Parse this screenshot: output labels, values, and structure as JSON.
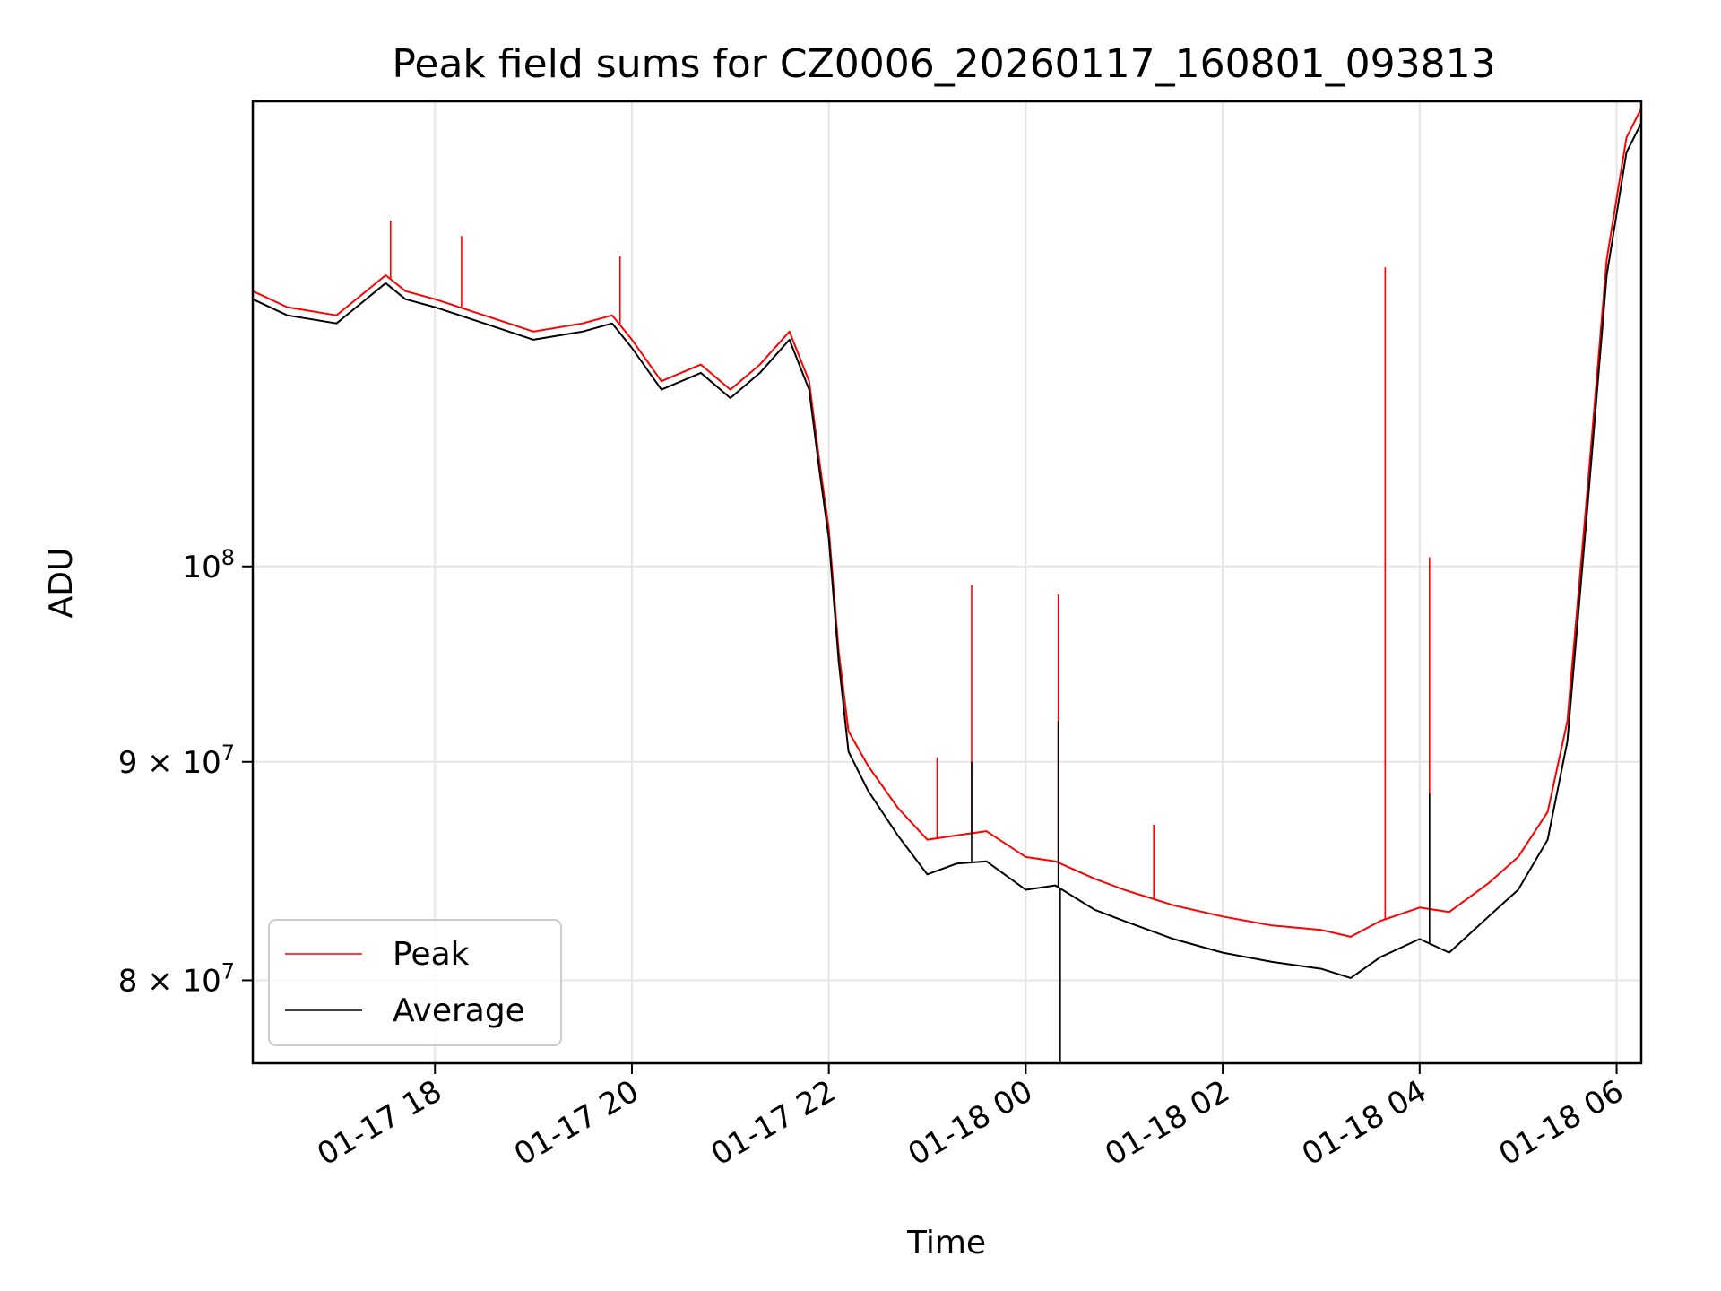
{
  "chart_data": {
    "type": "line",
    "title": "Peak field sums for CZ0006_20260117_160801_093813",
    "xlabel": "Time",
    "ylabel": "ADU",
    "yscale": "log",
    "grid": true,
    "legend_position": "lower-left",
    "xlim_hours": [
      16.15,
      30.25
    ],
    "ylim": [
      76500000,
      128500000
    ],
    "x_ticks": [
      {
        "hour": 18,
        "label": "01-17 18"
      },
      {
        "hour": 20,
        "label": "01-17 20"
      },
      {
        "hour": 22,
        "label": "01-17 22"
      },
      {
        "hour": 24,
        "label": "01-18 00"
      },
      {
        "hour": 26,
        "label": "01-18 02"
      },
      {
        "hour": 28,
        "label": "01-18 04"
      },
      {
        "hour": 30,
        "label": "01-18 06"
      }
    ],
    "y_ticks": [
      {
        "value": 80000000,
        "base": "8 × 10",
        "exp": "7"
      },
      {
        "value": 90000000,
        "base": "9 × 10",
        "exp": "7"
      },
      {
        "value": 100000000,
        "base": "10",
        "exp": "8"
      }
    ],
    "series": [
      {
        "name": "Peak",
        "color": "#ff0000",
        "x_hours": [
          16.15,
          16.5,
          17.0,
          17.5,
          17.7,
          18.0,
          18.5,
          19.0,
          19.5,
          19.8,
          20.0,
          20.3,
          20.7,
          21.0,
          21.3,
          21.6,
          21.8,
          21.9,
          22.0,
          22.1,
          22.2,
          22.4,
          22.7,
          23.0,
          23.3,
          23.6,
          24.0,
          24.3,
          24.7,
          25.0,
          25.5,
          26.0,
          26.5,
          27.0,
          27.3,
          27.6,
          28.0,
          28.3,
          28.7,
          29.0,
          29.3,
          29.5,
          29.7,
          29.9,
          30.1,
          30.25
        ],
        "values": [
          116000000,
          115000000,
          114500000,
          117000000,
          116000000,
          115500000,
          114500000,
          113500000,
          114000000,
          114500000,
          113000000,
          110500000,
          111500000,
          110000000,
          111500000,
          113500000,
          110500000,
          106000000,
          102000000,
          95500000,
          91500000,
          89800000,
          87800000,
          86300000,
          86500000,
          86700000,
          85500000,
          85300000,
          84500000,
          84000000,
          83300000,
          82800000,
          82400000,
          82200000,
          81900000,
          82600000,
          83200000,
          83000000,
          84300000,
          85500000,
          87600000,
          92000000,
          104000000,
          118000000,
          126000000,
          128000000
        ]
      },
      {
        "name": "Average",
        "color": "#000000",
        "x_hours": [
          16.15,
          16.5,
          17.0,
          17.5,
          17.7,
          18.0,
          18.5,
          19.0,
          19.5,
          19.8,
          20.0,
          20.3,
          20.7,
          21.0,
          21.3,
          21.6,
          21.8,
          21.9,
          22.0,
          22.1,
          22.2,
          22.4,
          22.7,
          23.0,
          23.3,
          23.6,
          24.0,
          24.3,
          24.7,
          25.0,
          25.5,
          26.0,
          26.5,
          27.0,
          27.3,
          27.6,
          28.0,
          28.3,
          28.7,
          29.0,
          29.3,
          29.5,
          29.7,
          29.9,
          30.1,
          30.25
        ],
        "values": [
          115500000,
          114500000,
          114000000,
          116500000,
          115500000,
          115000000,
          114000000,
          113000000,
          113500000,
          114000000,
          112500000,
          110000000,
          111000000,
          109500000,
          111000000,
          113000000,
          110000000,
          105500000,
          101500000,
          95000000,
          90500000,
          88600000,
          86500000,
          84700000,
          85200000,
          85300000,
          84000000,
          84200000,
          83100000,
          82600000,
          81800000,
          81200000,
          80800000,
          80500000,
          80100000,
          81000000,
          81800000,
          81200000,
          82800000,
          84000000,
          86300000,
          91000000,
          103000000,
          117000000,
          125000000,
          127000000
        ]
      }
    ],
    "spikes": [
      {
        "series": "Peak",
        "hour": 17.55,
        "value": 120500000
      },
      {
        "series": "Peak",
        "hour": 18.27,
        "value": 119500000
      },
      {
        "series": "Peak",
        "hour": 19.88,
        "value": 118200000
      },
      {
        "series": "Peak",
        "hour": 23.1,
        "value": 90200000
      },
      {
        "series": "Peak",
        "hour": 23.45,
        "value": 99000000
      },
      {
        "series": "Peak",
        "hour": 24.33,
        "value": 98500000
      },
      {
        "series": "Peak",
        "hour": 25.3,
        "value": 87000000
      },
      {
        "series": "Peak",
        "hour": 27.65,
        "value": 117500000
      },
      {
        "series": "Peak",
        "hour": 28.1,
        "value": 100500000
      },
      {
        "series": "Average",
        "hour": 23.45,
        "value": 90000000
      },
      {
        "series": "Average",
        "hour": 24.33,
        "value": 92000000
      },
      {
        "series": "Average",
        "hour": 24.35,
        "value": 76500000
      },
      {
        "series": "Average",
        "hour": 28.1,
        "value": 88500000
      }
    ]
  }
}
